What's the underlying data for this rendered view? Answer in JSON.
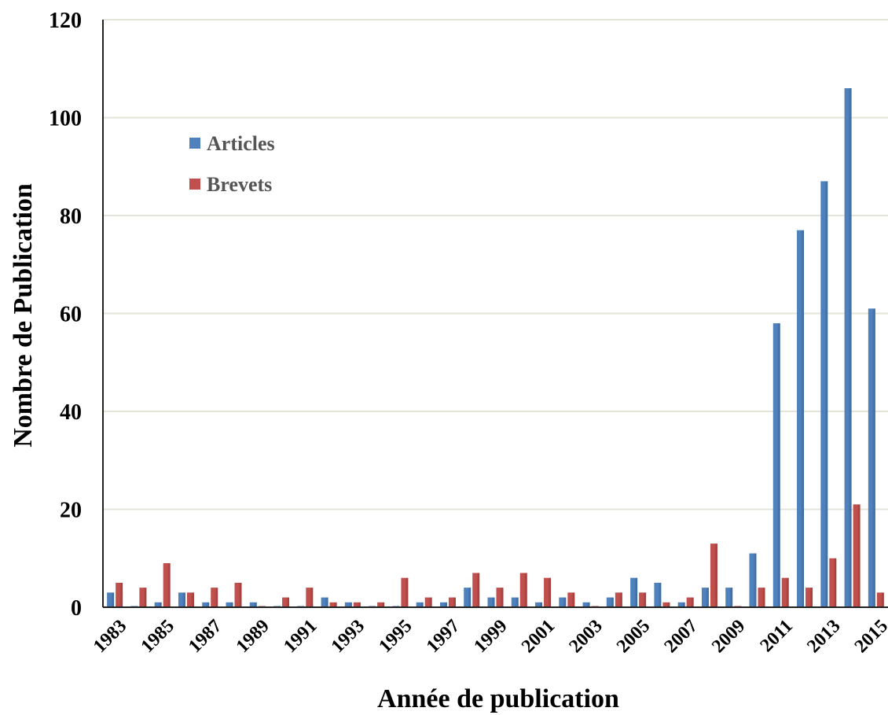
{
  "chart_data": {
    "type": "bar",
    "xlabel": "Année de publication",
    "ylabel": "Nombre de Publication",
    "ylim": [
      0,
      120
    ],
    "yticks": [
      0,
      20,
      40,
      60,
      80,
      100,
      120
    ],
    "grid": true,
    "legend_position": "top-left",
    "categories": [
      "1983",
      "1984",
      "1985",
      "1986",
      "1987",
      "1988",
      "1989",
      "1990",
      "1991",
      "1992",
      "1993",
      "1994",
      "1995",
      "1996",
      "1997",
      "1998",
      "1999",
      "2000",
      "2001",
      "2002",
      "2003",
      "2004",
      "2005",
      "2006",
      "2007",
      "2008",
      "2009",
      "2010",
      "2011",
      "2012",
      "2013",
      "2014",
      "2015"
    ],
    "xtick_labels": [
      "1983",
      "",
      "1985",
      "",
      "1987",
      "",
      "1989",
      "",
      "1991",
      "",
      "1993",
      "",
      "1995",
      "",
      "1997",
      "",
      "1999",
      "",
      "2001",
      "",
      "2003",
      "",
      "2005",
      "",
      "2007",
      "",
      "2009",
      "",
      "2011",
      "",
      "2013",
      "",
      "2015"
    ],
    "series": [
      {
        "name": "Articles",
        "color": "#4f81bd",
        "values": [
          3,
          0,
          1,
          3,
          1,
          1,
          1,
          0,
          0,
          2,
          1,
          0,
          0,
          1,
          1,
          4,
          2,
          2,
          1,
          2,
          1,
          2,
          6,
          5,
          1,
          4,
          4,
          11,
          58,
          77,
          87,
          106,
          61
        ]
      },
      {
        "name": "Brevets",
        "color": "#c0504d",
        "values": [
          5,
          4,
          9,
          3,
          4,
          5,
          0,
          2,
          4,
          1,
          1,
          1,
          6,
          2,
          2,
          7,
          4,
          7,
          6,
          3,
          0,
          3,
          3,
          1,
          2,
          13,
          0,
          4,
          6,
          4,
          10,
          21,
          3
        ]
      }
    ]
  }
}
